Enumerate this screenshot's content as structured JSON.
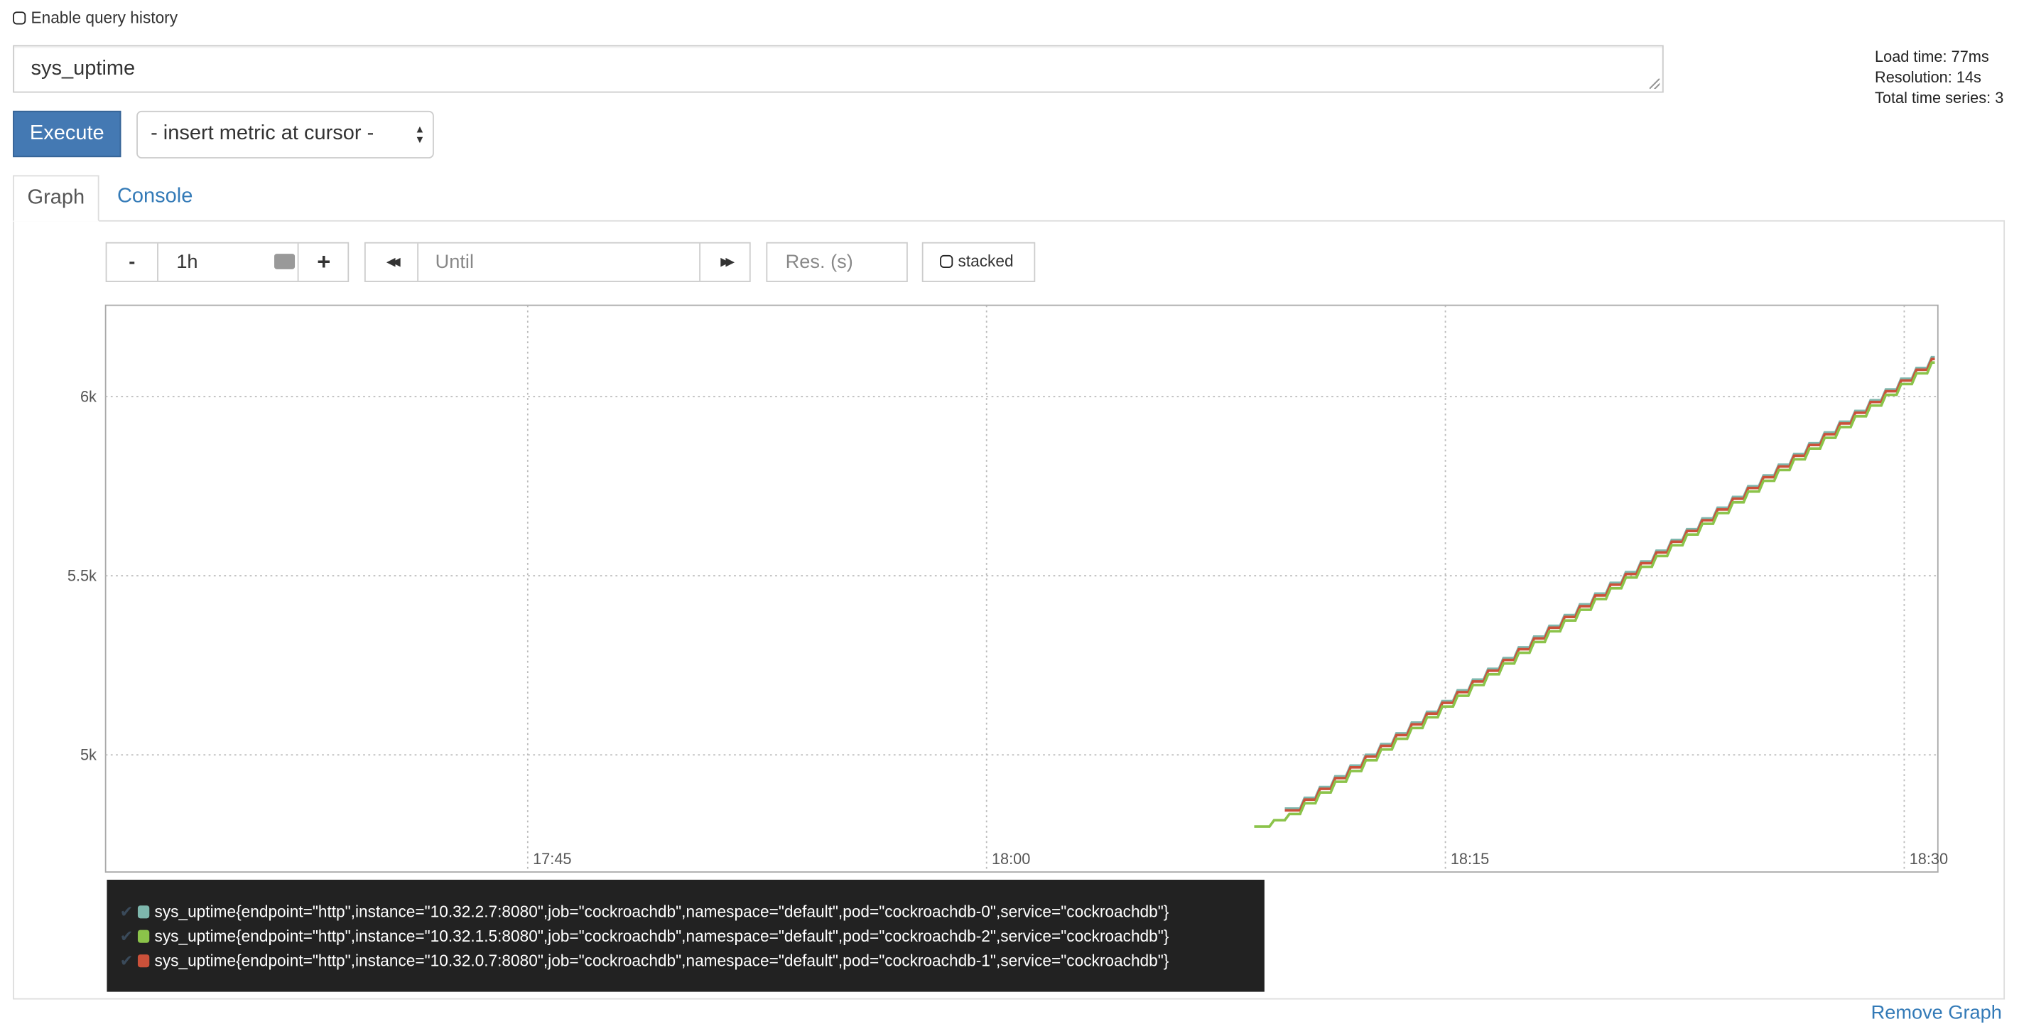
{
  "query_history": {
    "label": "Enable query history",
    "checked": false
  },
  "expression": {
    "value": "sys_uptime"
  },
  "stats": {
    "load_time": "Load time: 77ms",
    "resolution": "Resolution: 14s",
    "total_series": "Total time series: 3"
  },
  "execute_label": "Execute",
  "metric_select": {
    "selected": "- insert metric at cursor -"
  },
  "tabs": [
    {
      "label": "Graph",
      "active": true
    },
    {
      "label": "Console",
      "active": false
    }
  ],
  "controls": {
    "minus": "-",
    "range": "1h",
    "plus": "+",
    "back": "◀◀",
    "until_placeholder": "Until",
    "forward": "▶▶",
    "res_placeholder": "Res. (s)",
    "stacked_label": "stacked"
  },
  "colors": {
    "accent": "#4479b3",
    "link": "#337ab7",
    "series": [
      "#7eb7ad",
      "#8bc34a",
      "#cb513a"
    ]
  },
  "chart_data": {
    "type": "line",
    "interpolation": "step",
    "grid": true,
    "xlim": [
      "17:31",
      "18:31"
    ],
    "ylim": [
      4673,
      6255
    ],
    "xticks": [
      "17:45",
      "18:00",
      "18:15",
      "18:30"
    ],
    "yticks": [
      {
        "value": 5000,
        "label": "5k"
      },
      {
        "value": 5500,
        "label": "5.5k"
      },
      {
        "value": 6000,
        "label": "6k"
      }
    ],
    "series": [
      {
        "name": "sys_uptime{endpoint=\"http\",instance=\"10.32.2.7:8080\",job=\"cockroachdb\",namespace=\"default\",pod=\"cockroachdb-0\",service=\"cockroachdb\"}",
        "color": "#7eb7ad",
        "x": [
          "18:10",
          "18:11",
          "18:12",
          "18:13",
          "18:14",
          "18:15",
          "18:16",
          "18:17",
          "18:18",
          "18:19",
          "18:20",
          "18:21",
          "18:22",
          "18:23",
          "18:24",
          "18:25",
          "18:26",
          "18:27",
          "18:28",
          "18:29",
          "18:30",
          "18:31"
        ],
        "y": [
          4850,
          4910,
          4970,
          5030,
          5090,
          5150,
          5210,
          5270,
          5330,
          5390,
          5450,
          5510,
          5570,
          5630,
          5690,
          5750,
          5810,
          5870,
          5930,
          5990,
          6050,
          6110
        ]
      },
      {
        "name": "sys_uptime{endpoint=\"http\",instance=\"10.32.1.5:8080\",job=\"cockroachdb\",namespace=\"default\",pod=\"cockroachdb-2\",service=\"cockroachdb\"}",
        "color": "#8bc34a",
        "x": [
          "18:09",
          "18:10",
          "18:11",
          "18:12",
          "18:13",
          "18:14",
          "18:15",
          "18:16",
          "18:17",
          "18:18",
          "18:19",
          "18:20",
          "18:21",
          "18:22",
          "18:23",
          "18:24",
          "18:25",
          "18:26",
          "18:27",
          "18:28",
          "18:29",
          "18:30",
          "18:31"
        ],
        "y": [
          4800,
          4835,
          4895,
          4955,
          5015,
          5075,
          5135,
          5195,
          5255,
          5315,
          5375,
          5435,
          5495,
          5555,
          5615,
          5675,
          5735,
          5795,
          5855,
          5915,
          5975,
          6035,
          6095
        ]
      },
      {
        "name": "sys_uptime{endpoint=\"http\",instance=\"10.32.0.7:8080\",job=\"cockroachdb\",namespace=\"default\",pod=\"cockroachdb-1\",service=\"cockroachdb\"}",
        "color": "#cb513a",
        "x": [
          "18:10",
          "18:11",
          "18:12",
          "18:13",
          "18:14",
          "18:15",
          "18:16",
          "18:17",
          "18:18",
          "18:19",
          "18:20",
          "18:21",
          "18:22",
          "18:23",
          "18:24",
          "18:25",
          "18:26",
          "18:27",
          "18:28",
          "18:29",
          "18:30",
          "18:31"
        ],
        "y": [
          4845,
          4905,
          4965,
          5025,
          5085,
          5145,
          5205,
          5265,
          5325,
          5385,
          5445,
          5505,
          5565,
          5625,
          5685,
          5745,
          5805,
          5865,
          5925,
          5985,
          6045,
          6105
        ]
      }
    ]
  },
  "remove_graph_label": "Remove Graph"
}
